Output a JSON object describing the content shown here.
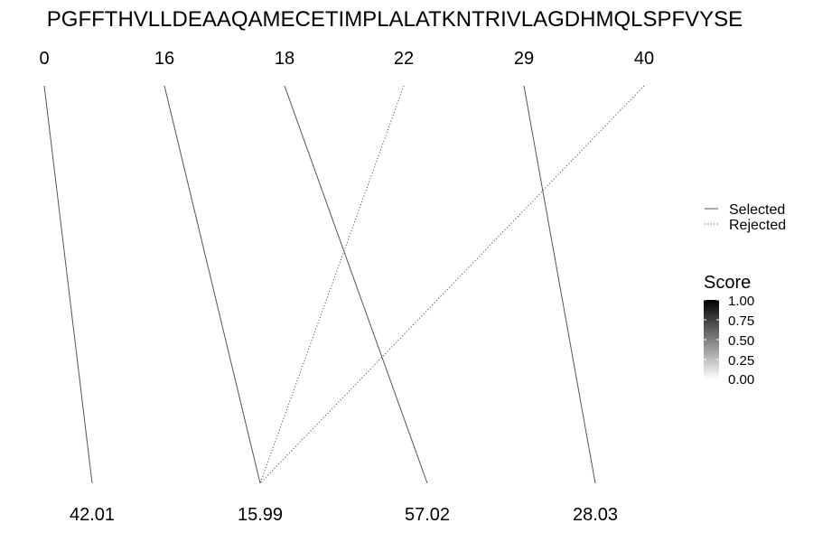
{
  "sequence": "PGFFTHVLLDEAAQAMECETIMPLALATKNTRIVLAGDHMQLSPFVYSE",
  "positions": [
    "0",
    "16",
    "18",
    "22",
    "29",
    "40"
  ],
  "masses": [
    "42.01",
    "15.99",
    "57.02",
    "28.03"
  ],
  "links": [
    {
      "from": 0,
      "to": 0,
      "status": "Selected"
    },
    {
      "from": 1,
      "to": 1,
      "status": "Selected"
    },
    {
      "from": 2,
      "to": 2,
      "status": "Selected"
    },
    {
      "from": 3,
      "to": 1,
      "status": "Rejected"
    },
    {
      "from": 4,
      "to": 3,
      "status": "Selected"
    },
    {
      "from": 5,
      "to": 1,
      "status": "Rejected"
    }
  ],
  "legend": {
    "selected": "Selected",
    "rejected": "Rejected"
  },
  "score_legend": {
    "title": "Score",
    "ticks": [
      "1.00",
      "0.75",
      "0.50",
      "0.25",
      "0.00"
    ],
    "color_high": "#000000",
    "color_low": "#ffffff"
  },
  "colors": {
    "line": "#555555",
    "text": "#000000"
  }
}
